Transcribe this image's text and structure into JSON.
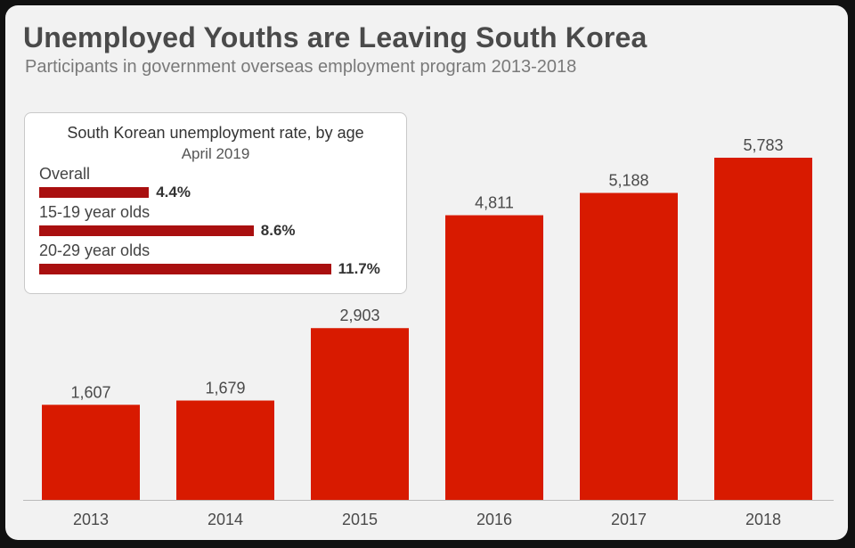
{
  "header": {
    "title": "Unemployed Youths are Leaving South Korea",
    "subtitle": "Participants in government overseas employment program 2013-2018"
  },
  "inset": {
    "title": "South Korean unemployment rate, by age",
    "subtitle": "April 2019",
    "rows": [
      {
        "label": "Overall",
        "value": 4.4,
        "display": "4.4%"
      },
      {
        "label": "15-19 year olds",
        "value": 8.6,
        "display": "8.6%"
      },
      {
        "label": "20-29 year olds",
        "value": 11.7,
        "display": "11.7%"
      }
    ],
    "bar_color": "#a90f0f"
  },
  "chart_data": {
    "type": "bar",
    "categories": [
      "2013",
      "2014",
      "2015",
      "2016",
      "2017",
      "2018"
    ],
    "values": [
      1607,
      1679,
      2903,
      4811,
      5188,
      5783
    ],
    "value_labels": [
      "1,607",
      "1,679",
      "2,903",
      "4,811",
      "5,188",
      "5,783"
    ],
    "bar_color": "#d81a00",
    "grid": false
  }
}
